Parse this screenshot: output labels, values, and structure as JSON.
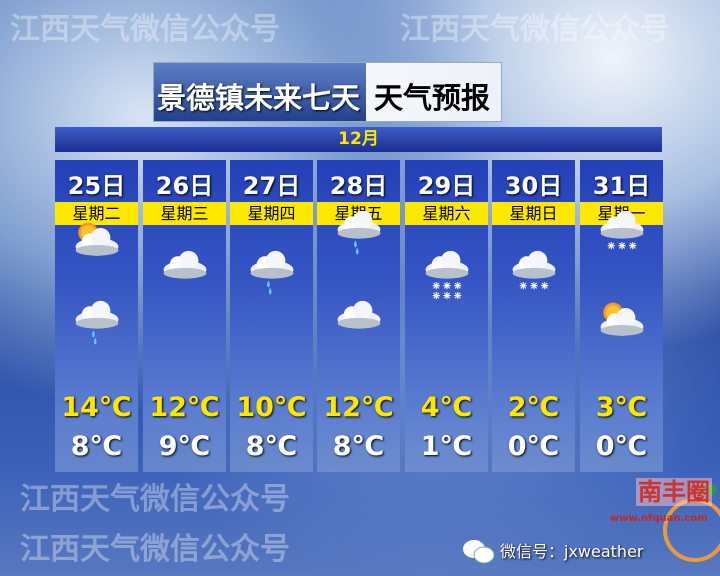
{
  "title": {
    "part1": "景德镇未来七天",
    "part2": "天气预报"
  },
  "month": "12月",
  "days": [
    {
      "date": "25日",
      "weekday": "星期二",
      "high": "14℃",
      "low": "8℃",
      "icons": [
        "partly-cloudy-sun-icon",
        "light-rain-icon"
      ]
    },
    {
      "date": "26日",
      "weekday": "星期三",
      "high": "12℃",
      "low": "9℃",
      "icons": [
        "cloudy-icon"
      ]
    },
    {
      "date": "27日",
      "weekday": "星期四",
      "high": "10℃",
      "low": "8℃",
      "icons": [
        "light-rain-icon"
      ]
    },
    {
      "date": "28日",
      "weekday": "星期五",
      "high": "12℃",
      "low": "8℃",
      "icons": [
        "light-rain-icon",
        "cloudy-icon"
      ]
    },
    {
      "date": "29日",
      "weekday": "星期六",
      "high": "4℃",
      "low": "1℃",
      "icons": [
        "moderate-snow-icon"
      ]
    },
    {
      "date": "30日",
      "weekday": "星期日",
      "high": "2℃",
      "low": "0℃",
      "icons": [
        "light-snow-icon"
      ]
    },
    {
      "date": "31日",
      "weekday": "星期一",
      "high": "3℃",
      "low": "0℃",
      "icons": [
        "light-snow-icon",
        "partly-cloudy-sun-icon"
      ]
    }
  ],
  "watermark": "江西天气微信公众号",
  "footer": {
    "wechat": "微信号：jxweather",
    "logo": "南丰圈",
    "logo_url": "www.nfquan.com"
  },
  "colors": {
    "high_temp": "#ffe600",
    "weekday_band": "#ffe800"
  }
}
